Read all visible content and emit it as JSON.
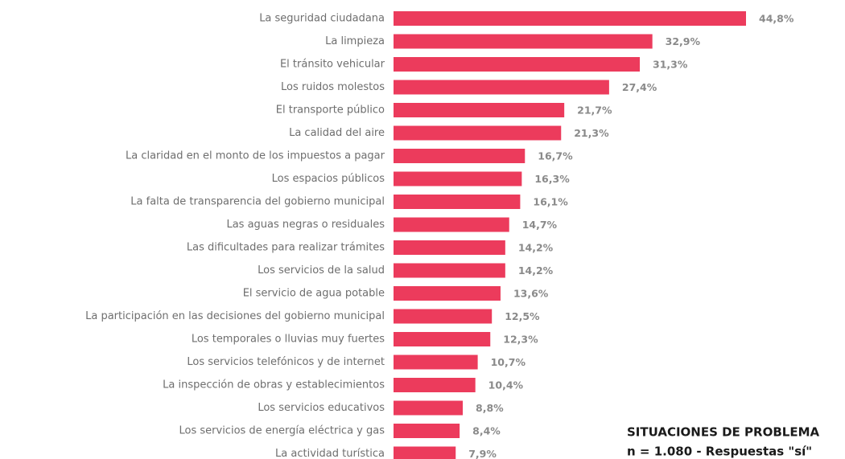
{
  "chart_data": {
    "type": "bar",
    "orientation": "horizontal",
    "title": "SITUACIONES DE PROBLEMA",
    "subtitle": "n = 1.080 - Respuestas \"sí\"",
    "color": "#ec3b5c",
    "categories": [
      "La seguridad ciudadana",
      "La limpieza",
      "El tránsito vehicular",
      "Los ruidos molestos",
      "El transporte público",
      "La calidad del aire",
      "La claridad en el monto de los impuestos a pagar",
      "Los espacios públicos",
      "La falta de transparencia del gobierno municipal",
      "Las aguas negras o residuales",
      "Las dificultades para realizar trámites",
      "Los servicios de la salud",
      "El servicio de agua potable",
      "La participación en las decisiones del gobierno municipal",
      "Los temporales o lluvias muy fuertes",
      "Los servicios telefónicos y de internet",
      "La inspección de obras y establecimientos",
      "Los servicios educativos",
      "Los servicios de energía eléctrica y gas",
      "La actividad turística"
    ],
    "values": [
      44.8,
      32.9,
      31.3,
      27.4,
      21.7,
      21.3,
      16.7,
      16.3,
      16.1,
      14.7,
      14.2,
      14.2,
      13.6,
      12.5,
      12.3,
      10.7,
      10.4,
      8.8,
      8.4,
      7.9
    ],
    "value_labels": [
      "44,8%",
      "32,9%",
      "31,3%",
      "27,4%",
      "21,7%",
      "21,3%",
      "16,7%",
      "16,3%",
      "16,1%",
      "14,7%",
      "14,2%",
      "14,2%",
      "13,6%",
      "12,5%",
      "12,3%",
      "10,7%",
      "10,4%",
      "8,8%",
      "8,4%",
      "7,9%"
    ]
  }
}
